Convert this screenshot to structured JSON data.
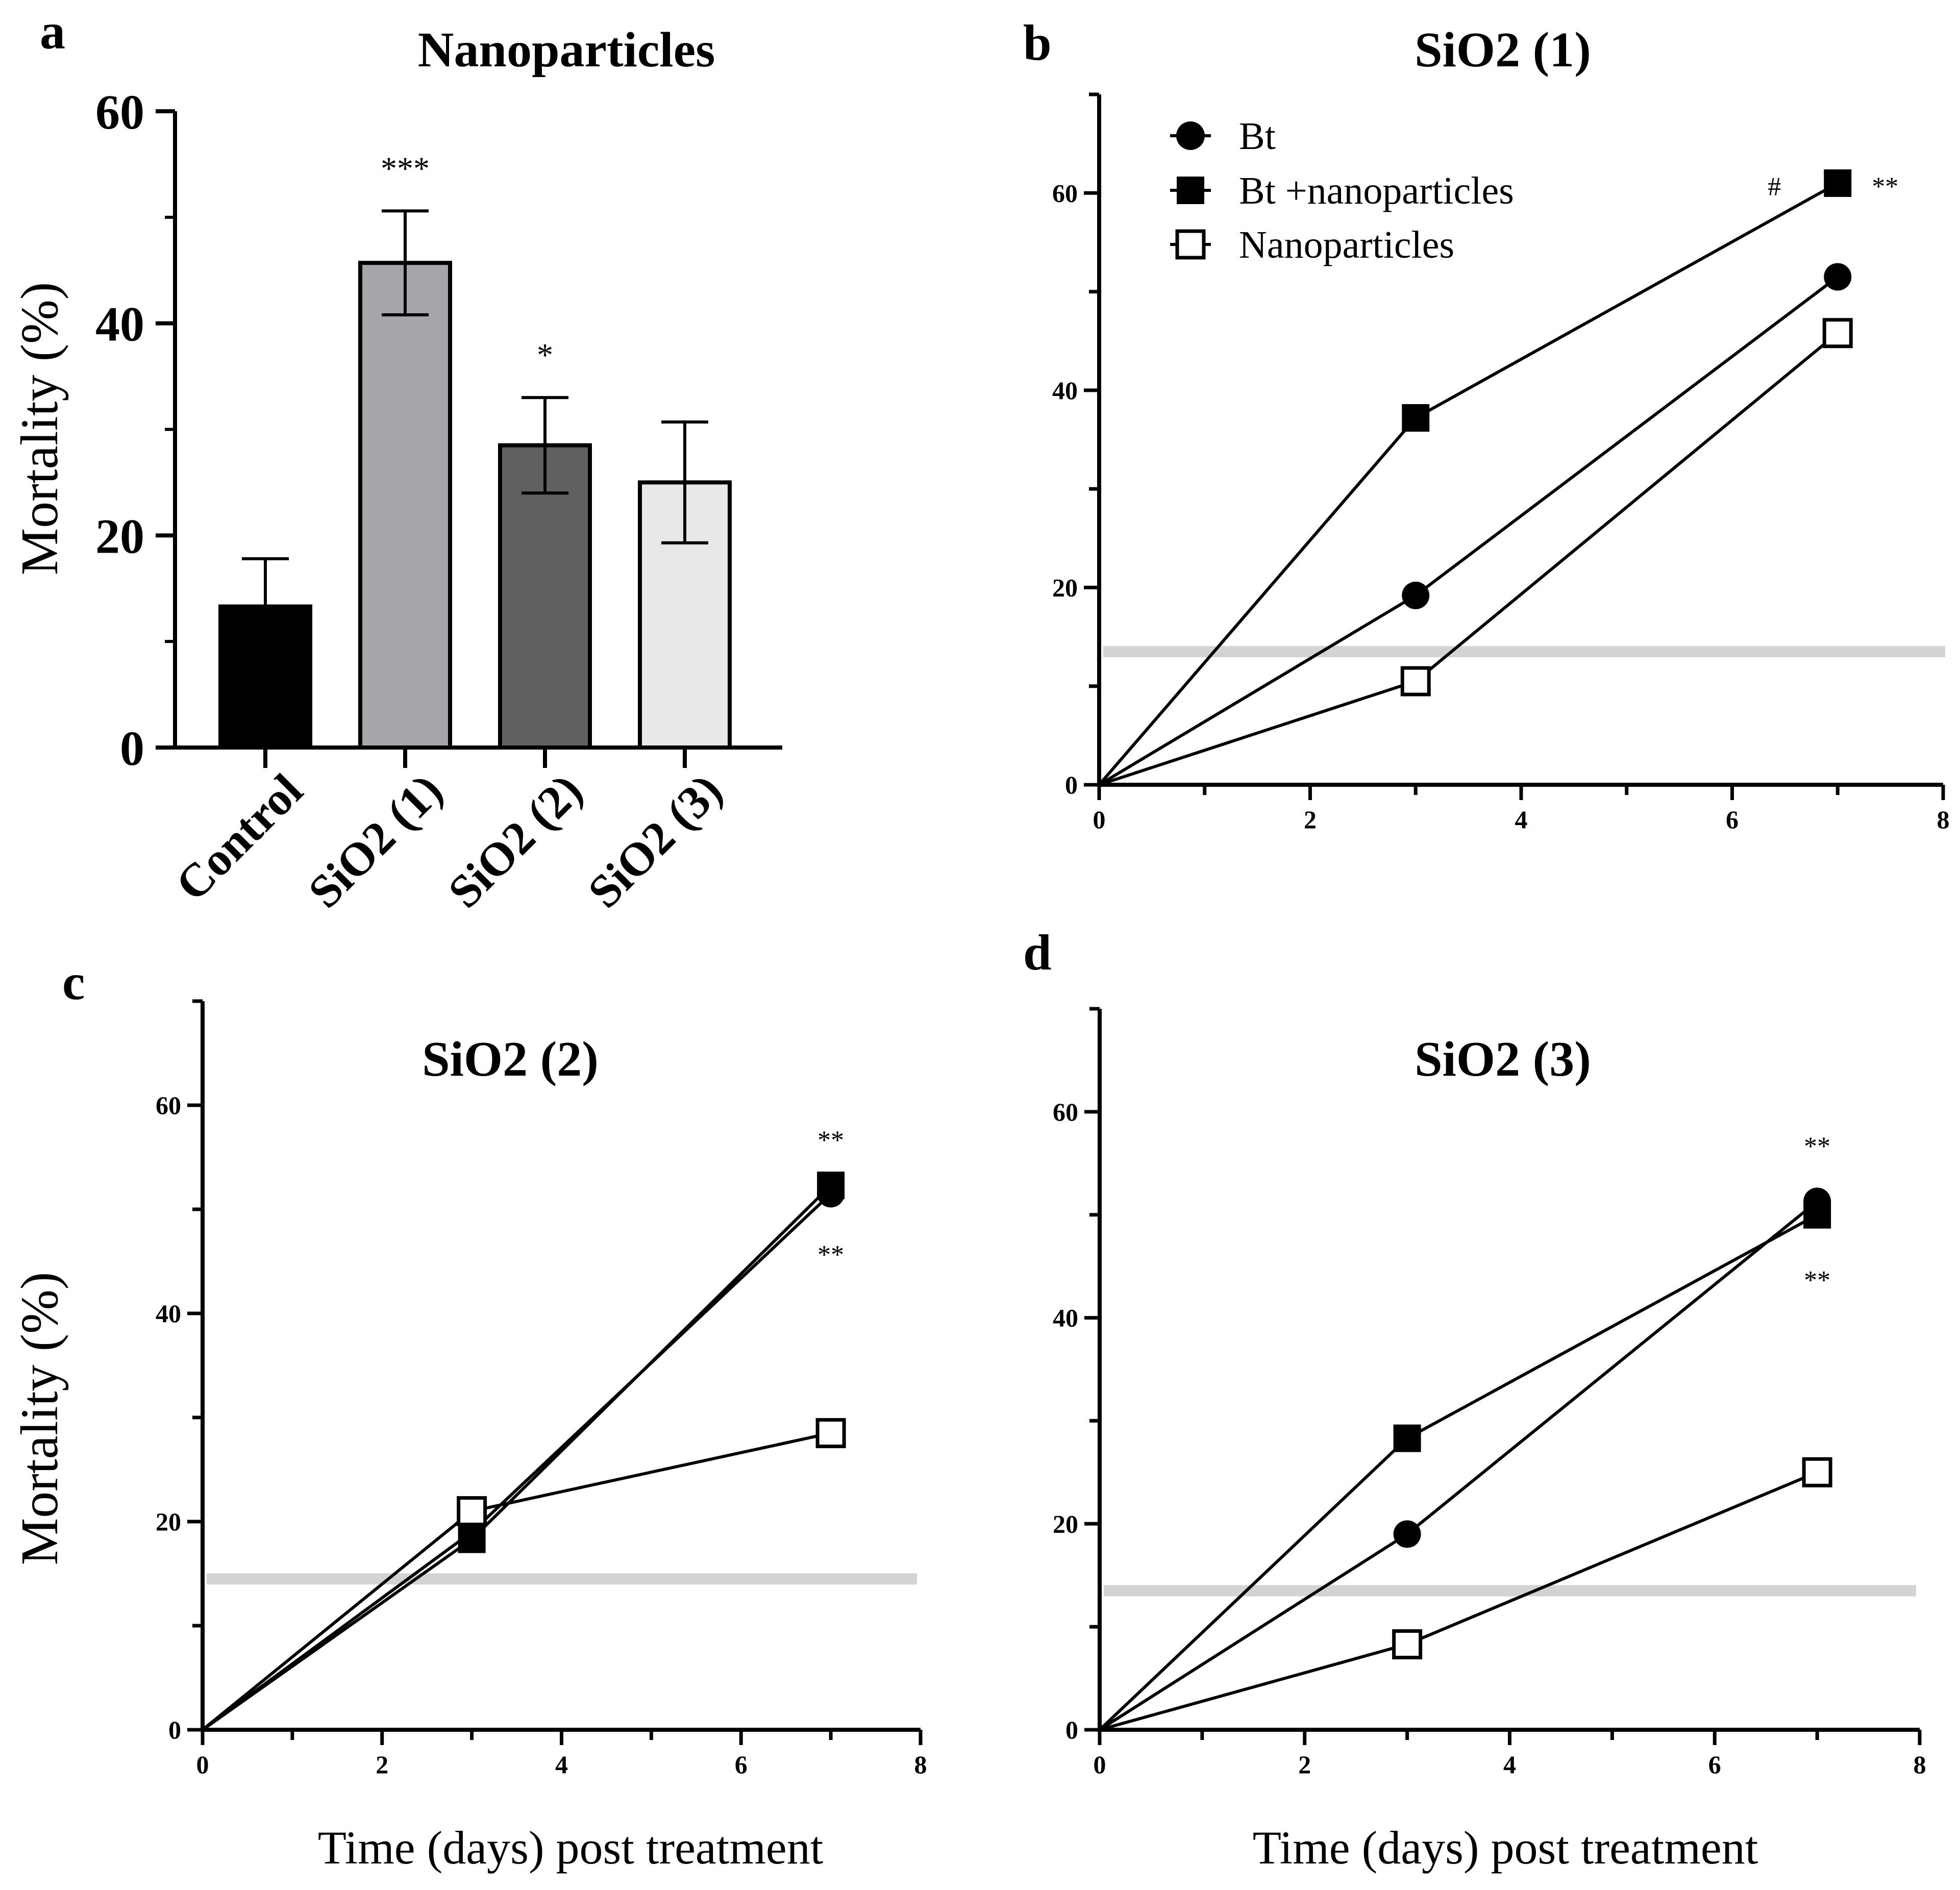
{
  "chart_data": [
    {
      "panel": "a",
      "type": "bar",
      "title": "Nanoparticles",
      "ylabel": "Mortality (%)",
      "xlabel": "",
      "ylim": [
        0,
        60
      ],
      "yticks": [
        0,
        20,
        40,
        60
      ],
      "categories": [
        "Control",
        "SiO2 (1)",
        "SiO2 (2)",
        "SiO2 (3)"
      ],
      "values": [
        13.3,
        45.7,
        28.5,
        25.0
      ],
      "errors": [
        4.5,
        4.9,
        4.5,
        5.7
      ],
      "colors": [
        "#000000",
        "#a6a6aa",
        "#606060",
        "#e8e8e8"
      ],
      "annotations": [
        "",
        "***",
        "*",
        ""
      ]
    },
    {
      "panel": "b",
      "type": "line",
      "title": "SiO2 (1)",
      "xlabel": "",
      "ylabel": "",
      "xlim": [
        0,
        8
      ],
      "ylim": [
        0,
        70
      ],
      "xticks": [
        0,
        2,
        4,
        6,
        8
      ],
      "yticks": [
        0,
        20,
        40,
        60
      ],
      "control_line": 13.5,
      "legend": [
        "Bt",
        "Bt +nanoparticles",
        "Nanoparticles"
      ],
      "series": [
        {
          "name": "Bt",
          "marker": "circle",
          "x": [
            0,
            3,
            7
          ],
          "values": [
            0,
            19.2,
            51.5
          ]
        },
        {
          "name": "Bt +nanoparticles",
          "marker": "square",
          "x": [
            0,
            3,
            7
          ],
          "values": [
            0,
            37.2,
            61.0
          ]
        },
        {
          "name": "Nanoparticles",
          "marker": "open-square",
          "x": [
            0,
            3,
            7
          ],
          "values": [
            0,
            10.5,
            45.8
          ]
        }
      ],
      "annotations": [
        {
          "text": "#",
          "x": 6.4,
          "y": 60.5
        },
        {
          "text": "**",
          "x": 7.45,
          "y": 60.5
        }
      ]
    },
    {
      "panel": "c",
      "type": "line",
      "title": "SiO2 (2)",
      "xlabel": "Time (days) post treatment",
      "ylabel": "Mortality (%)",
      "xlim": [
        0,
        8
      ],
      "ylim": [
        0,
        70
      ],
      "xticks": [
        0,
        2,
        4,
        6,
        8
      ],
      "yticks": [
        0,
        20,
        40,
        60
      ],
      "control_line": 14.5,
      "series": [
        {
          "name": "Bt",
          "marker": "circle",
          "x": [
            0,
            3,
            7
          ],
          "values": [
            0,
            19.0,
            51.5
          ]
        },
        {
          "name": "Bt +nanoparticles",
          "marker": "square",
          "x": [
            0,
            3,
            7
          ],
          "values": [
            0,
            18.3,
            52.3
          ]
        },
        {
          "name": "Nanoparticles",
          "marker": "open-square",
          "x": [
            0,
            3,
            7
          ],
          "values": [
            0,
            21.0,
            28.5
          ]
        }
      ],
      "annotations": [
        {
          "text": "**",
          "x": 7.0,
          "y": 56.5
        },
        {
          "text": "**",
          "x": 7.0,
          "y": 45.5
        }
      ]
    },
    {
      "panel": "d",
      "type": "line",
      "title": "SiO2 (3)",
      "xlabel": "Time (days) post treatment",
      "ylabel": "",
      "xlim": [
        0,
        8
      ],
      "ylim": [
        0,
        70
      ],
      "xticks": [
        0,
        2,
        4,
        6,
        8
      ],
      "yticks": [
        0,
        20,
        40,
        60
      ],
      "control_line": 13.5,
      "series": [
        {
          "name": "Bt",
          "marker": "circle",
          "x": [
            0,
            3,
            7
          ],
          "values": [
            0,
            19.0,
            51.3
          ]
        },
        {
          "name": "Bt +nanoparticles",
          "marker": "square",
          "x": [
            0,
            3,
            7
          ],
          "values": [
            0,
            28.3,
            50.0
          ]
        },
        {
          "name": "Nanoparticles",
          "marker": "open-square",
          "x": [
            0,
            3,
            7
          ],
          "values": [
            0,
            8.3,
            25.0
          ]
        }
      ],
      "annotations": [
        {
          "text": "**",
          "x": 7.0,
          "y": 56.5
        },
        {
          "text": "**",
          "x": 7.0,
          "y": 43.5
        }
      ]
    }
  ]
}
